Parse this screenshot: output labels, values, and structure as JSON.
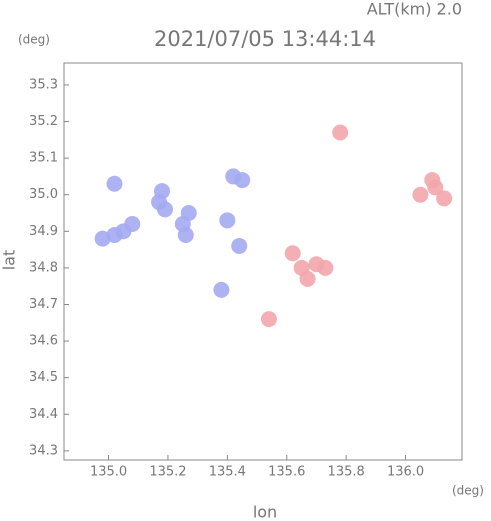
{
  "chart_data": {
    "type": "scatter",
    "title": "2021/07/05 13:44:14",
    "subtitle": "ALT(km) 2.0",
    "x_label": "lon",
    "y_label": "lat",
    "x_unit": "(deg)",
    "y_unit": "(deg)",
    "xlim": [
      134.85,
      136.19
    ],
    "ylim": [
      34.275,
      35.36
    ],
    "xticks": [
      {
        "value": 135,
        "label": "135.0"
      },
      135.2,
      135.4,
      135.6,
      135.8,
      {
        "value": 136,
        "label": "136.0"
      }
    ],
    "yticks": [
      34.3,
      34.4,
      34.5,
      34.6,
      34.7,
      34.8,
      34.9,
      {
        "value": 35,
        "label": "35.0"
      },
      35.1,
      35.2,
      35.3
    ],
    "series": [
      {
        "color": "#a4aaf2",
        "x": [
          134.98,
          135.02,
          135.05,
          135.08,
          135.17,
          135.18,
          135.19,
          135.25,
          135.27,
          135.26,
          135.42,
          135.45,
          135.4,
          135.44,
          135.38,
          135.02
        ],
        "y": [
          34.88,
          34.89,
          34.9,
          34.92,
          34.98,
          35.01,
          34.96,
          34.92,
          34.95,
          34.89,
          35.05,
          35.04,
          34.93,
          34.86,
          34.74,
          35.03
        ]
      },
      {
        "color": "#f2a6ac",
        "x": [
          135.62,
          135.65,
          135.7,
          135.73,
          135.67,
          136.05,
          136.1,
          136.13,
          136.09,
          135.78,
          135.54
        ],
        "y": [
          34.84,
          34.8,
          34.81,
          34.8,
          34.77,
          35.0,
          35.02,
          34.99,
          35.04,
          35.17,
          34.66
        ]
      }
    ]
  }
}
